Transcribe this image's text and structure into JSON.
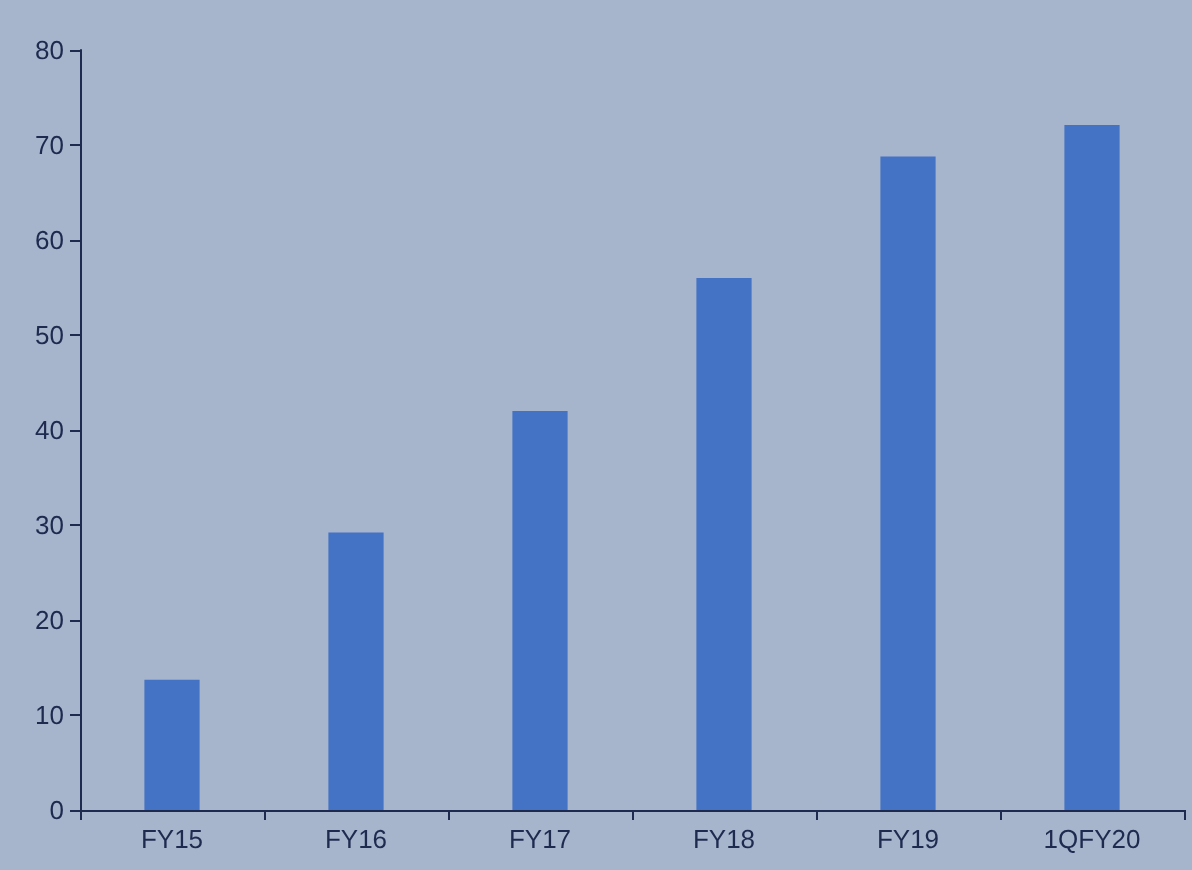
{
  "chart_data": {
    "type": "bar",
    "categories": [
      "FY15",
      "FY16",
      "FY17",
      "FY18",
      "FY19",
      "1QFY20"
    ],
    "values": [
      13.7,
      29.2,
      42,
      56,
      68.8,
      72.1
    ],
    "color": "#4472c4",
    "ylim": [
      0,
      80
    ],
    "yticks": [
      0,
      10,
      20,
      30,
      40,
      50,
      60,
      70,
      80
    ],
    "grid": false
  }
}
